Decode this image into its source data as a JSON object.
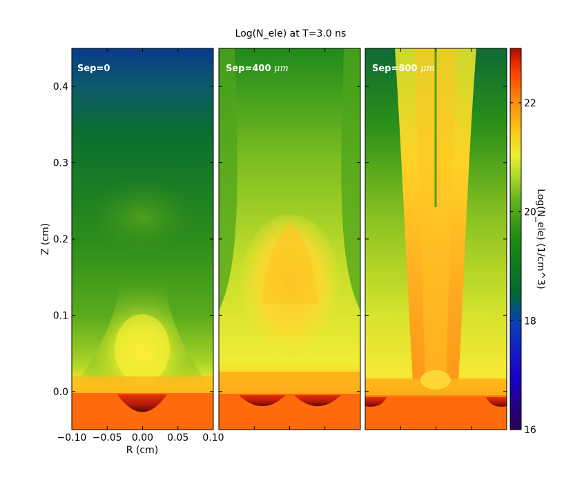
{
  "chart_data": {
    "type": "heatmap",
    "title": "Log(N_ele) at T=3.0 ns",
    "xlabel": "R (cm)",
    "ylabel": "Z (cm)",
    "xlim": [
      -0.1,
      0.1
    ],
    "ylim": [
      -0.05,
      0.45
    ],
    "x_ticks": [
      "−0.10",
      "−0.05",
      "0.00",
      "0.05",
      "0.10"
    ],
    "y_ticks": [
      "0.0",
      "0.1",
      "0.2",
      "0.3",
      "0.4"
    ],
    "grid": false,
    "panels": [
      {
        "label": "Sep=0",
        "sep": ""
      },
      {
        "label": "Sep=400 ",
        "sep": "μm"
      },
      {
        "label": "Sep=800 ",
        "sep": "μm"
      }
    ],
    "colorbar": {
      "label": "Log(N_ele) (1/cm^3)",
      "range": [
        16,
        23
      ],
      "ticks": [
        "16",
        "18",
        "20",
        "22"
      ],
      "colormap": [
        "#2a0050",
        "#1a00c8",
        "#0a40b8",
        "#006a30",
        "#1e8a10",
        "#62b21e",
        "#a8d428",
        "#ecf032",
        "#fcc818",
        "#ff8c10",
        "#ff4800",
        "#e02000",
        "#a01000"
      ]
    }
  }
}
